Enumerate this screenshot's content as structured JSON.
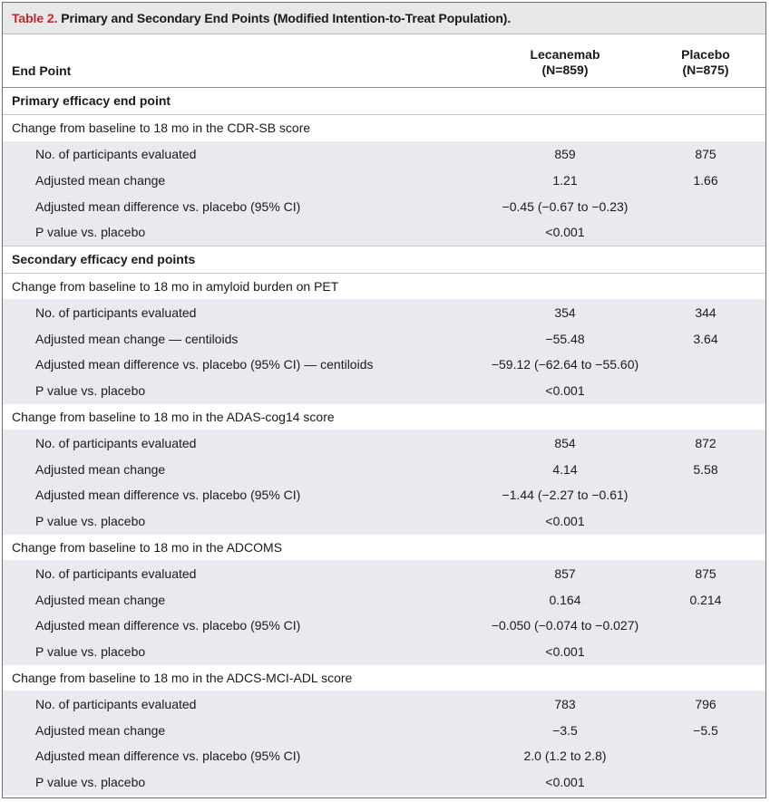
{
  "table": {
    "title_number": "Table 2.",
    "title_text": "Primary and Secondary End Points (Modified Intention-to-Treat Population).",
    "header": {
      "endpoint": "End Point",
      "lecanemab_line1": "Lecanemab",
      "lecanemab_line2": "(N=859)",
      "placebo_line1": "Placebo",
      "placebo_line2": "(N=875)"
    },
    "rows": [
      {
        "label": "Primary efficacy end point",
        "type": "section",
        "lec": "",
        "pla": ""
      },
      {
        "label": "Change from baseline to 18 mo in the CDR-SB score",
        "type": "group",
        "lec": "",
        "pla": ""
      },
      {
        "label": "No. of participants evaluated",
        "type": "item",
        "lec": "859",
        "pla": "875"
      },
      {
        "label": "Adjusted mean change",
        "type": "item",
        "lec": "1.21",
        "pla": "1.66"
      },
      {
        "label": "Adjusted mean difference vs. placebo (95% CI)",
        "type": "item",
        "lec": "−0.45 (−0.67 to −0.23)",
        "pla": ""
      },
      {
        "label": "P value vs. placebo",
        "type": "item",
        "lec": "<0.001",
        "pla": ""
      },
      {
        "label": "Secondary efficacy end points",
        "type": "section",
        "lec": "",
        "pla": ""
      },
      {
        "label": "Change from baseline to 18 mo in amyloid burden on PET",
        "type": "group",
        "lec": "",
        "pla": ""
      },
      {
        "label": "No. of participants evaluated",
        "type": "item",
        "lec": "354",
        "pla": "344"
      },
      {
        "label": "Adjusted mean change — centiloids",
        "type": "item",
        "lec": "−55.48",
        "pla": "3.64"
      },
      {
        "label": "Adjusted mean difference vs. placebo (95% CI) — centiloids",
        "type": "item",
        "lec": "−59.12 (−62.64 to −55.60)",
        "pla": ""
      },
      {
        "label": "P value vs. placebo",
        "type": "item",
        "lec": "<0.001",
        "pla": ""
      },
      {
        "label": "Change from baseline to 18 mo in the ADAS-cog14 score",
        "type": "group",
        "lec": "",
        "pla": ""
      },
      {
        "label": "No. of participants evaluated",
        "type": "item",
        "lec": "854",
        "pla": "872"
      },
      {
        "label": "Adjusted mean change",
        "type": "item",
        "lec": "4.14",
        "pla": "5.58"
      },
      {
        "label": "Adjusted mean difference vs. placebo (95% CI)",
        "type": "item",
        "lec": "−1.44 (−2.27 to −0.61)",
        "pla": ""
      },
      {
        "label": "P value vs. placebo",
        "type": "item",
        "lec": "<0.001",
        "pla": ""
      },
      {
        "label": "Change from baseline to 18 mo in the ADCOMS",
        "type": "group",
        "lec": "",
        "pla": ""
      },
      {
        "label": "No. of participants evaluated",
        "type": "item",
        "lec": "857",
        "pla": "875"
      },
      {
        "label": "Adjusted mean change",
        "type": "item",
        "lec": "0.164",
        "pla": "0.214"
      },
      {
        "label": "Adjusted mean difference vs. placebo (95% CI)",
        "type": "item",
        "lec": "−0.050 (−0.074 to −0.027)",
        "pla": ""
      },
      {
        "label": "P value vs. placebo",
        "type": "item",
        "lec": "<0.001",
        "pla": ""
      },
      {
        "label": "Change from baseline to 18 mo in the ADCS-MCI-ADL score",
        "type": "group",
        "lec": "",
        "pla": ""
      },
      {
        "label": "No. of participants evaluated",
        "type": "item",
        "lec": "783",
        "pla": "796"
      },
      {
        "label": "Adjusted mean change",
        "type": "item",
        "lec": "−3.5",
        "pla": "−5.5"
      },
      {
        "label": "Adjusted mean difference vs. placebo (95% CI)",
        "type": "item",
        "lec": "2.0 (1.2 to 2.8)",
        "pla": ""
      },
      {
        "label": "P value vs. placebo",
        "type": "item",
        "lec": "<0.001",
        "pla": ""
      }
    ]
  },
  "colors": {
    "title_number": "#c0272d",
    "title_bar": "#e8e8e8",
    "row_shade": "#e9eaf0"
  }
}
